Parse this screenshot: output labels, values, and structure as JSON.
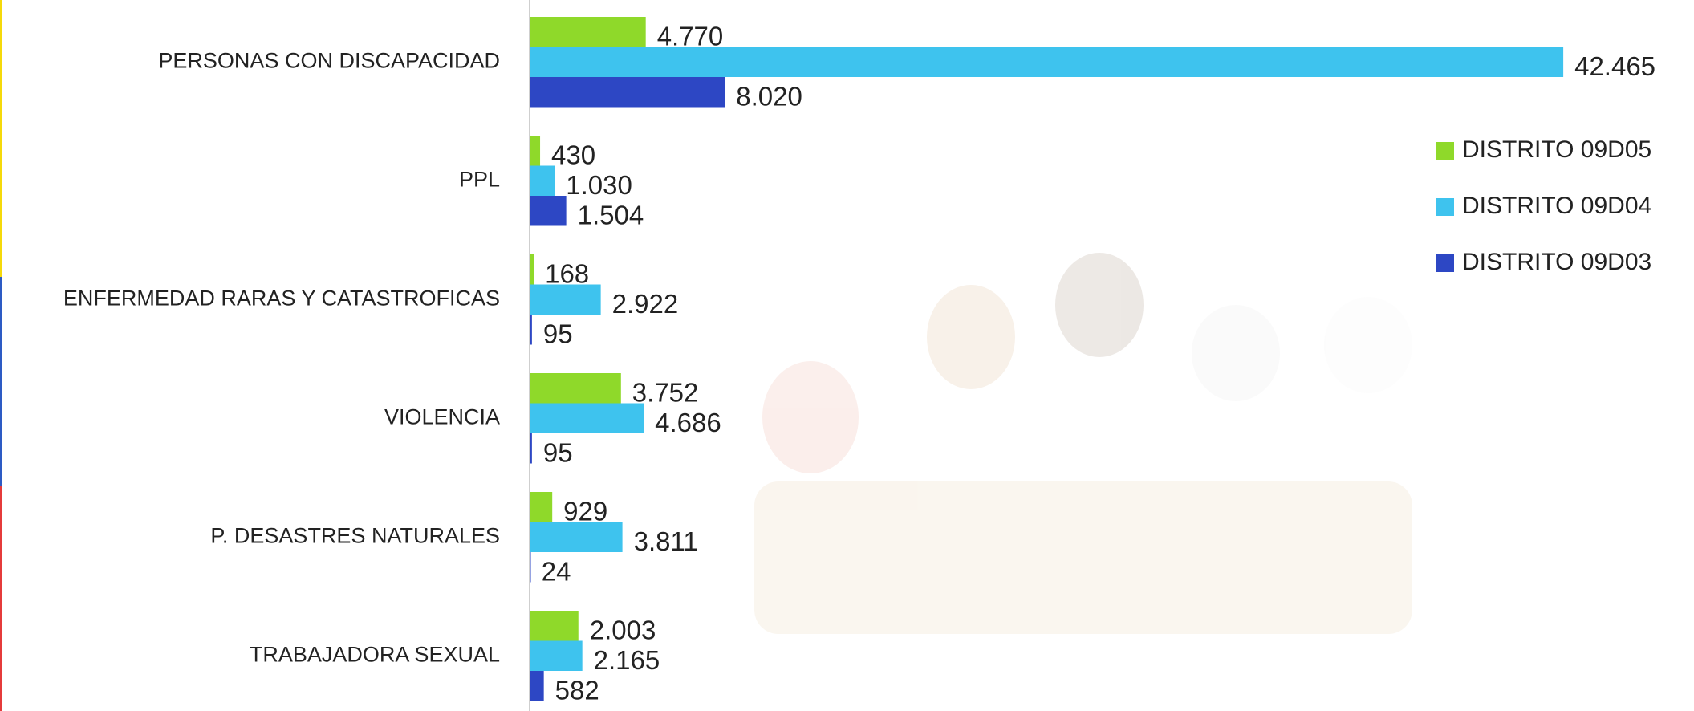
{
  "chart_data": {
    "type": "bar",
    "orientation": "horizontal",
    "categories": [
      "PERSONAS CON DISCAPACIDAD",
      "PPL",
      "ENFERMEDAD RARAS Y CATASTROFICAS",
      "VIOLENCIA",
      "P. DESASTRES NATURALES",
      "TRABAJADORA SEXUAL"
    ],
    "series": [
      {
        "name": "DISTRITO 09D05",
        "color": "#8fd92a",
        "values": [
          4770,
          430,
          168,
          3752,
          929,
          2003
        ],
        "value_labels": [
          "4.770",
          "430",
          "168",
          "3.752",
          "929",
          "2.003"
        ]
      },
      {
        "name": "DISTRITO 09D04",
        "color": "#3ec3ee",
        "values": [
          42465,
          1030,
          2922,
          4686,
          3811,
          2165
        ],
        "value_labels": [
          "42.465",
          "1.030",
          "2.922",
          "4.686",
          "3.811",
          "2.165"
        ]
      },
      {
        "name": "DISTRITO 09D03",
        "color": "#2d47c4",
        "values": [
          8020,
          1504,
          95,
          95,
          24,
          582
        ],
        "value_labels": [
          "8.020",
          "1.504",
          "95",
          "95",
          "24",
          "582"
        ]
      }
    ],
    "xlim": [
      0,
      45000
    ],
    "legend": "right"
  }
}
